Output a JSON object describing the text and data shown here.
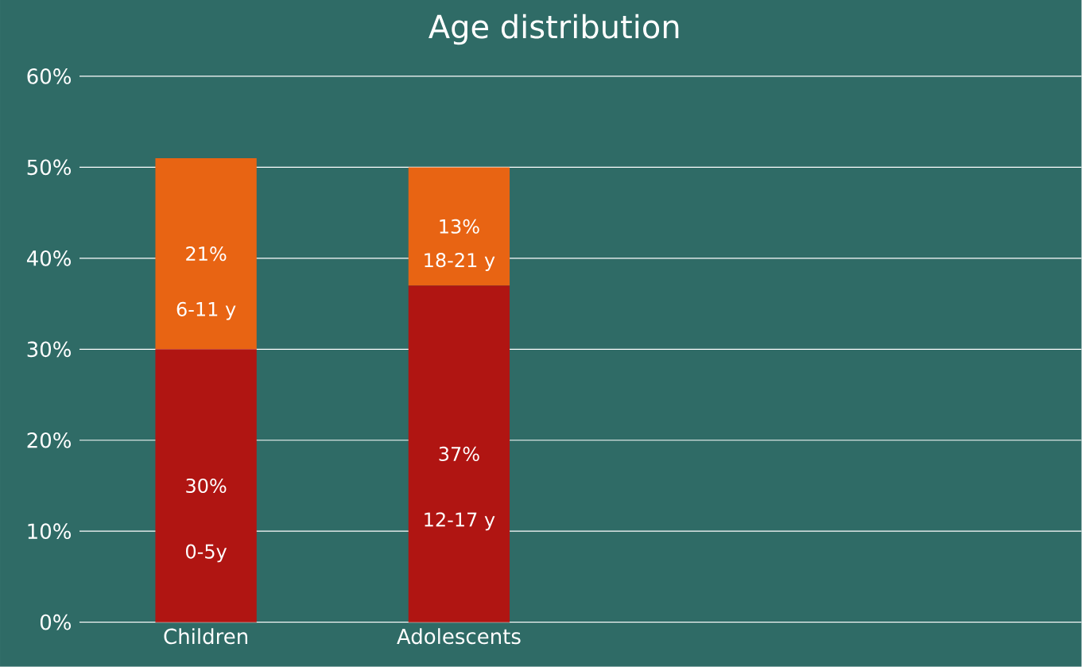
{
  "chart_data": {
    "type": "bar",
    "title": "Age distribution",
    "categories": [
      "Children",
      "Adolescents"
    ],
    "series": [
      {
        "color": "#b01512",
        "values": [
          30,
          37
        ],
        "value_labels": [
          "30%",
          "37%"
        ]
      },
      {
        "color": "#e86413",
        "values": [
          21,
          13
        ],
        "value_labels": [
          "21%",
          "13%"
        ]
      }
    ],
    "stacked": true,
    "ylim": [
      0,
      60
    ],
    "yticks": [
      {
        "value": 0,
        "label": "0%"
      },
      {
        "value": 10,
        "label": "10%"
      },
      {
        "value": 20,
        "label": "20%"
      },
      {
        "value": 30,
        "label": "30%"
      },
      {
        "value": 40,
        "label": "40%"
      },
      {
        "value": 50,
        "label": "50%"
      },
      {
        "value": 60,
        "label": "60%"
      }
    ],
    "grid": "y",
    "annotations": [
      "0-5y",
      "6-11 y",
      "12-17 y",
      "18-21 y"
    ]
  }
}
